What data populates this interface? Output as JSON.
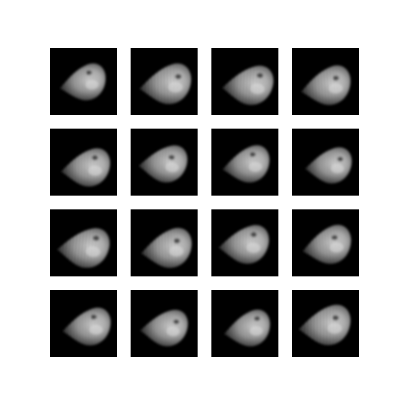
{
  "image_grid": {
    "rows": 4,
    "columns": 4
  }
}
